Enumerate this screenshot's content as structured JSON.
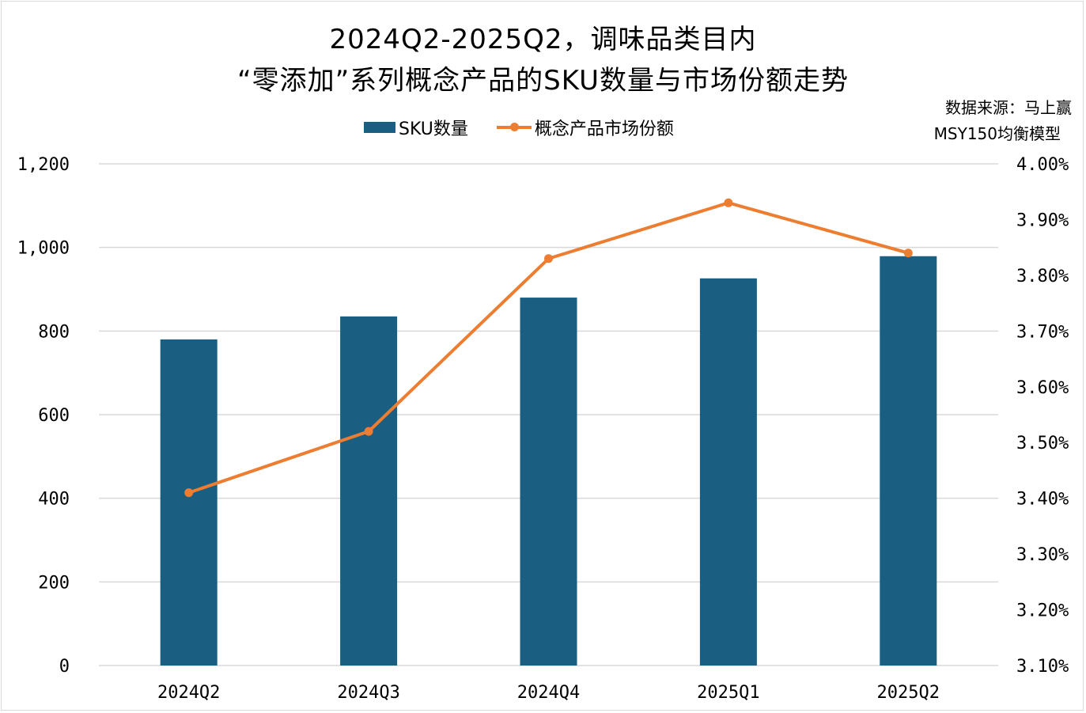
{
  "chart_data": {
    "type": "bar+line",
    "title_line1": "2024Q2-2025Q2，调味品类目内",
    "title_line2": "“零添加”系列概念产品的SKU数量与市场份额走势",
    "source_line1": "数据来源：马上赢",
    "source_line2": "MSY150均衡模型",
    "categories": [
      "2024Q2",
      "2024Q3",
      "2024Q4",
      "2025Q1",
      "2025Q2"
    ],
    "series": [
      {
        "name": "SKU数量",
        "type": "bar",
        "axis": "left",
        "color": "#1a5e82",
        "values": [
          780,
          835,
          880,
          926,
          979
        ]
      },
      {
        "name": "概念产品市场份额",
        "type": "line",
        "axis": "right",
        "color": "#ed7d31",
        "values": [
          3.41,
          3.52,
          3.83,
          3.93,
          3.84
        ],
        "unit": "%"
      }
    ],
    "left_axis": {
      "ylim": [
        0,
        1200
      ],
      "ticks": [
        "0",
        "200",
        "400",
        "600",
        "800",
        "1,000",
        "1,200"
      ]
    },
    "right_axis": {
      "ylim": [
        3.1,
        4.0
      ],
      "ticks": [
        "3.10%",
        "3.20%",
        "3.30%",
        "3.40%",
        "3.50%",
        "3.60%",
        "3.70%",
        "3.80%",
        "3.90%",
        "4.00%"
      ]
    },
    "grid": true,
    "legend_placement": "top"
  }
}
